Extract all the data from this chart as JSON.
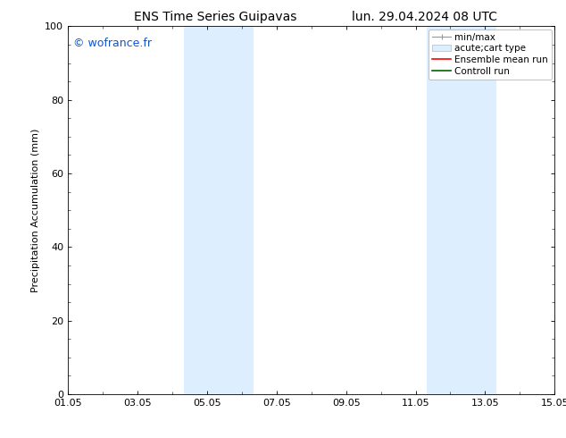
{
  "title_left": "ENS Time Series Guipavas",
  "title_right": "lun. 29.04.2024 08 UTC",
  "ylabel": "Precipitation Accumulation (mm)",
  "ylim": [
    0,
    100
  ],
  "yticks": [
    0,
    20,
    40,
    60,
    80,
    100
  ],
  "xlim_start": 0,
  "xlim_end": 14,
  "xtick_labels": [
    "01.05",
    "03.05",
    "05.05",
    "07.05",
    "09.05",
    "11.05",
    "13.05",
    "15.05"
  ],
  "xtick_positions": [
    0,
    2,
    4,
    6,
    8,
    10,
    12,
    14
  ],
  "shaded_regions": [
    {
      "xmin": 3.33,
      "xmax": 4.0
    },
    {
      "xmin": 4.0,
      "xmax": 5.33
    },
    {
      "xmin": 10.33,
      "xmax": 11.0
    },
    {
      "xmin": 11.0,
      "xmax": 12.33
    }
  ],
  "shaded_color": "#ddeeff",
  "watermark_text": "© wofrance.fr",
  "watermark_color": "#1155cc",
  "legend_entries": [
    {
      "label": "min/max"
    },
    {
      "label": "acute;cart type"
    },
    {
      "label": "Ensemble mean run"
    },
    {
      "label": "Controll run"
    }
  ],
  "bg_color": "#ffffff",
  "spine_color": "#888888",
  "title_fontsize": 10,
  "label_fontsize": 8,
  "tick_fontsize": 8,
  "watermark_fontsize": 9,
  "legend_fontsize": 7.5
}
